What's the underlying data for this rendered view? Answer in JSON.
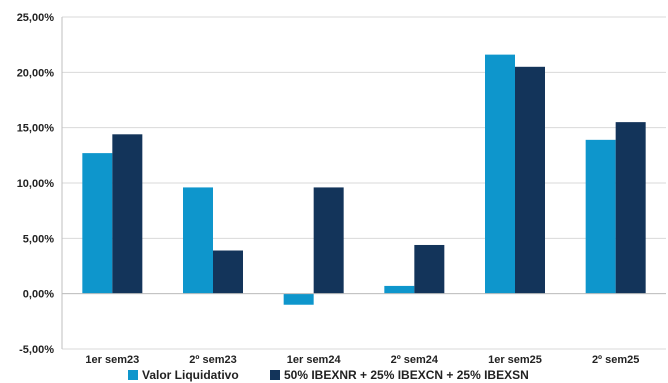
{
  "chart_data": {
    "type": "bar",
    "title": "",
    "xlabel": "",
    "ylabel": "",
    "categories": [
      "1er sem23",
      "2º sem23",
      "1er sem24",
      "2º sem24",
      "1er sem25",
      "2º sem25"
    ],
    "series": [
      {
        "name": "Valor Liquidativo",
        "color": "#0E96CC",
        "values": [
          12.7,
          9.6,
          -1.0,
          0.7,
          21.6,
          13.9
        ]
      },
      {
        "name": "50% IBEXNR + 25% IBEXCN + 25% IBEXSN",
        "color": "#13345A",
        "values": [
          14.4,
          3.9,
          9.6,
          4.4,
          20.5,
          15.5
        ]
      }
    ],
    "ylim": [
      -5,
      25
    ],
    "yticks": [
      -5,
      0,
      5,
      10,
      15,
      20,
      25
    ],
    "ytick_labels": [
      "-5,00%",
      "0,00%",
      "5,00%",
      "10,00%",
      "15,00%",
      "20,00%",
      "25,00%"
    ],
    "grid": true,
    "legend_position": "bottom"
  }
}
